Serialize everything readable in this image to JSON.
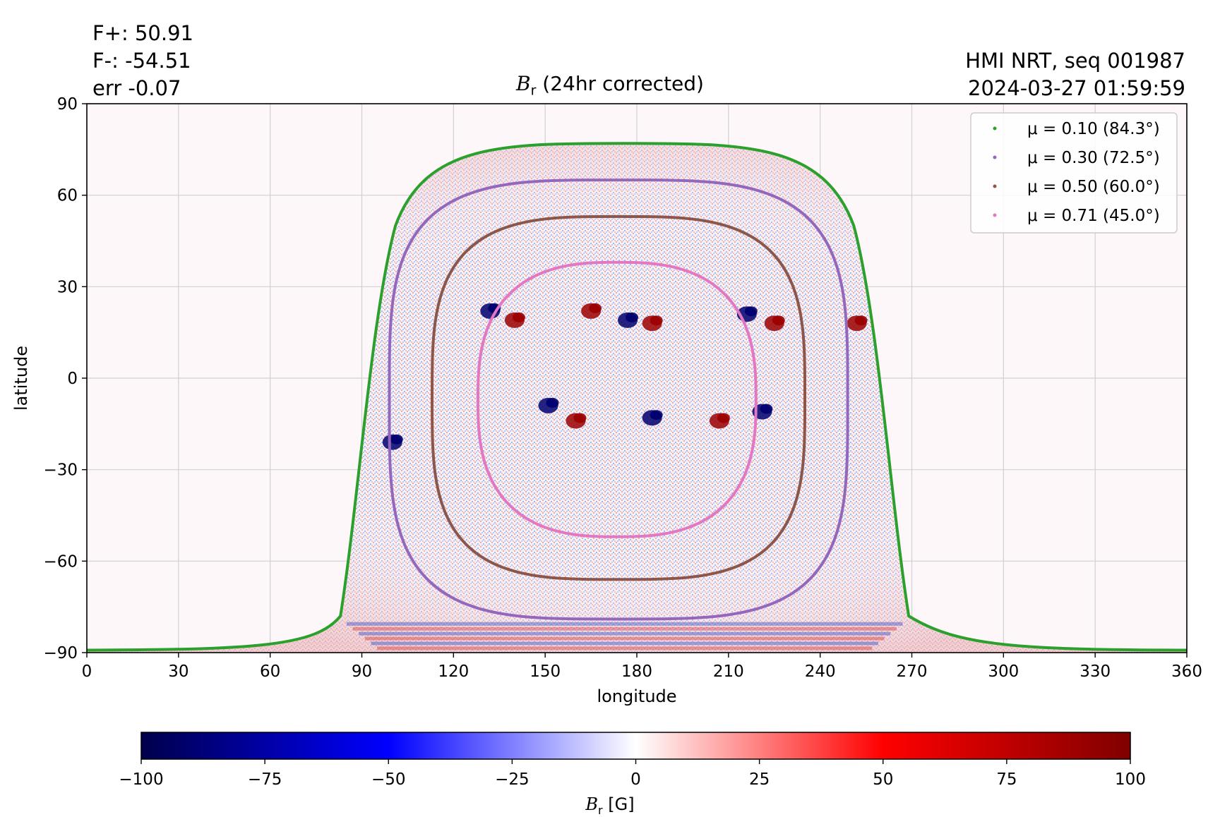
{
  "header": {
    "flux_pos": "F+: 50.91",
    "flux_neg": "F-: -54.51",
    "err": "err -0.07",
    "instrument": "HMI NRT, seq 001987",
    "timestamp": "2024-03-27 01:59:59"
  },
  "chart_data": {
    "type": "heatmap",
    "title_symbol": "B",
    "title_subscript": "r",
    "title_rest": " (24hr corrected)",
    "xlabel": "longitude",
    "ylabel": "latitude",
    "xlim": [
      0,
      360
    ],
    "ylim": [
      -90,
      90
    ],
    "xticks": [
      0,
      30,
      60,
      90,
      120,
      150,
      180,
      210,
      240,
      270,
      300,
      330,
      360
    ],
    "yticks": [
      90,
      60,
      30,
      0,
      -30,
      -60,
      -90
    ],
    "ytick_labels": [
      "90",
      "60",
      "30",
      "0",
      "−30",
      "−60",
      "−90"
    ],
    "grid": true,
    "legend_position": "upper-right",
    "legend": [
      {
        "label": "μ = 0.10 (84.3°)",
        "color": "#2ca02c"
      },
      {
        "label": "μ = 0.30 (72.5°)",
        "color": "#9467bd"
      },
      {
        "label": "μ = 0.50 (60.0°)",
        "color": "#8c564b"
      },
      {
        "label": "μ = 0.71 (45.0°)",
        "color": "#e377c2"
      }
    ],
    "disk_center_lon": 180,
    "mu_contours": [
      {
        "mu": 0.1,
        "lon_range": [
          89,
          263
        ],
        "lat_range": [
          -90,
          77
        ]
      },
      {
        "mu": 0.3,
        "lon_range": [
          99,
          249
        ],
        "lat_range": [
          -79,
          65
        ]
      },
      {
        "mu": 0.5,
        "lon_range": [
          113,
          235
        ],
        "lat_range": [
          -66,
          53
        ]
      },
      {
        "mu": 0.71,
        "lon_range": [
          128,
          219
        ],
        "lat_range": [
          -52,
          38
        ]
      }
    ],
    "active_regions": [
      {
        "lon": 132,
        "lat": 22,
        "polarity": "negative"
      },
      {
        "lon": 140,
        "lat": 19,
        "polarity": "positive"
      },
      {
        "lon": 165,
        "lat": 22,
        "polarity": "positive"
      },
      {
        "lon": 177,
        "lat": 19,
        "polarity": "negative"
      },
      {
        "lon": 185,
        "lat": 18,
        "polarity": "positive"
      },
      {
        "lon": 216,
        "lat": 21,
        "polarity": "negative"
      },
      {
        "lon": 225,
        "lat": 18,
        "polarity": "positive"
      },
      {
        "lon": 252,
        "lat": 18,
        "polarity": "positive"
      },
      {
        "lon": 207,
        "lat": -14,
        "polarity": "positive"
      },
      {
        "lon": 221,
        "lat": -11,
        "polarity": "negative"
      },
      {
        "lon": 185,
        "lat": -13,
        "polarity": "negative"
      },
      {
        "lon": 160,
        "lat": -14,
        "polarity": "positive"
      },
      {
        "lon": 151,
        "lat": -9,
        "polarity": "negative"
      },
      {
        "lon": 100,
        "lat": -21,
        "polarity": "negative"
      }
    ],
    "colorbar": {
      "range": [
        -100,
        100
      ],
      "ticks": [
        -100,
        -75,
        -50,
        -25,
        0,
        25,
        50,
        75,
        100
      ],
      "tick_labels": [
        "−100",
        "−75",
        "−50",
        "−25",
        "0",
        "25",
        "50",
        "75",
        "100"
      ],
      "colormap": "seismic",
      "label_symbol": "B",
      "label_subscript": "r",
      "label_unit": " [G]"
    }
  }
}
